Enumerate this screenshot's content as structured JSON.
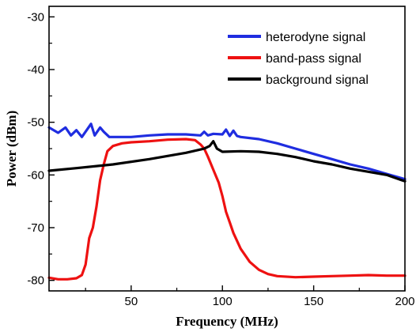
{
  "chart_data": {
    "type": "line",
    "xlabel": "Frequency (MHz)",
    "ylabel": "Power (dBm)",
    "xlim": [
      5,
      200
    ],
    "ylim": [
      -82,
      -28
    ],
    "xticks": [
      50,
      100,
      150,
      200
    ],
    "yticks": [
      -80,
      -70,
      -60,
      -50,
      -40,
      -30
    ],
    "xtick_labels": [
      "50",
      "100",
      "150",
      "200"
    ],
    "ytick_labels": [
      "-80",
      "-70",
      "-60",
      "-50",
      "-40",
      "-30"
    ],
    "grid": false,
    "legend_position": "top-right",
    "series": [
      {
        "name": "heterodyne signal",
        "color": "#1f2de0",
        "x": [
          5,
          10,
          14,
          17,
          20,
          23,
          26,
          28,
          30,
          33,
          35,
          38,
          42,
          50,
          60,
          70,
          80,
          88,
          90,
          92,
          95,
          100,
          102,
          104,
          106,
          108,
          110,
          120,
          130,
          140,
          150,
          160,
          170,
          180,
          190,
          200
        ],
        "y": [
          -51.0,
          -52.0,
          -51.0,
          -52.5,
          -51.5,
          -52.8,
          -51.3,
          -50.3,
          -52.5,
          -51.0,
          -51.8,
          -52.8,
          -52.8,
          -52.8,
          -52.5,
          -52.3,
          -52.3,
          -52.5,
          -51.8,
          -52.5,
          -52.2,
          -52.3,
          -51.4,
          -52.6,
          -51.6,
          -52.6,
          -52.8,
          -53.2,
          -54.0,
          -55.0,
          -56.0,
          -57.0,
          -58.0,
          -58.8,
          -59.8,
          -60.8
        ]
      },
      {
        "name": "band-pass signal",
        "color": "#ee1111",
        "x": [
          5,
          10,
          15,
          20,
          23,
          25,
          27,
          29,
          31,
          33,
          35,
          37,
          40,
          45,
          50,
          60,
          70,
          80,
          85,
          88,
          90,
          92,
          95,
          98,
          100,
          102,
          104,
          106,
          108,
          110,
          115,
          120,
          125,
          130,
          140,
          150,
          160,
          170,
          180,
          190,
          200
        ],
        "y": [
          -79.5,
          -79.8,
          -79.8,
          -79.6,
          -79.0,
          -77.0,
          -72.0,
          -70.0,
          -66.0,
          -61.0,
          -58.0,
          -55.5,
          -54.5,
          -54.0,
          -53.8,
          -53.6,
          -53.3,
          -53.2,
          -53.4,
          -54.2,
          -55.0,
          -56.5,
          -59.0,
          -61.5,
          -64.0,
          -67.0,
          -69.0,
          -71.0,
          -72.5,
          -74.0,
          -76.5,
          -78.0,
          -78.8,
          -79.2,
          -79.4,
          -79.3,
          -79.2,
          -79.1,
          -79.0,
          -79.1,
          -79.1
        ]
      },
      {
        "name": "background signal",
        "color": "#000000",
        "x": [
          5,
          20,
          40,
          60,
          80,
          90,
          93,
          95,
          97,
          100,
          110,
          120,
          130,
          140,
          150,
          160,
          170,
          180,
          190,
          200
        ],
        "y": [
          -59.2,
          -58.7,
          -58.0,
          -57.0,
          -55.8,
          -55.0,
          -54.5,
          -53.6,
          -55.0,
          -55.6,
          -55.5,
          -55.6,
          -56.0,
          -56.6,
          -57.4,
          -58.0,
          -58.8,
          -59.4,
          -60.0,
          -61.2
        ]
      }
    ]
  },
  "colors": {
    "axis": "#000000",
    "background": "#ffffff"
  }
}
